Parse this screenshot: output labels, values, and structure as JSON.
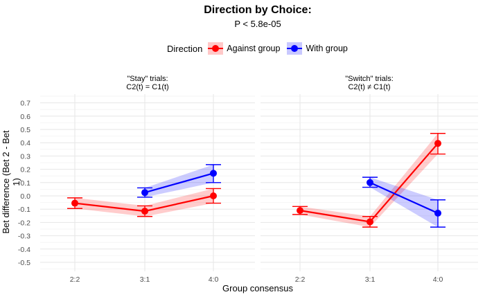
{
  "chart_data": {
    "type": "line",
    "title": "Direction by Choice:",
    "subtitle": "P < 5.8e-05",
    "xlabel": "Group consensus",
    "ylabel": "Bet difference (Bet 2 - Bet 1)",
    "ylim": [
      -0.55,
      0.75
    ],
    "yticks": [
      "0.7",
      "0.6",
      "0.5",
      "0.4",
      "0.3",
      "0.2",
      "0.1",
      "0.0",
      "-0.1",
      "-0.2",
      "-0.3",
      "-0.4",
      "-0.5"
    ],
    "ytick_values": [
      0.7,
      0.6,
      0.5,
      0.4,
      0.3,
      0.2,
      0.1,
      0.0,
      -0.1,
      -0.2,
      -0.3,
      -0.4,
      -0.5
    ],
    "categories": [
      "2:2",
      "3:1",
      "4:0"
    ],
    "grid": true,
    "legend": {
      "title": "Direction",
      "position": "top",
      "entries": [
        {
          "label": "Against group",
          "color": "#ff0000",
          "ribbon": "#ffc8c8"
        },
        {
          "label": "With group",
          "color": "#0000ff",
          "ribbon": "#c8c8ff"
        }
      ]
    },
    "panels": [
      {
        "title_line1": "\"Stay\" trials:",
        "title_line2": "C2(t) = C1(t)",
        "series": [
          {
            "name": "Against group",
            "x": [
              "2:2",
              "3:1",
              "4:0"
            ],
            "y": [
              -0.055,
              -0.115,
              0.0
            ],
            "lower": [
              -0.095,
              -0.155,
              -0.055
            ],
            "upper": [
              -0.015,
              -0.075,
              0.055
            ]
          },
          {
            "name": "With group",
            "x": [
              "3:1",
              "4:0"
            ],
            "y": [
              0.025,
              0.17
            ],
            "lower": [
              -0.01,
              0.1
            ],
            "upper": [
              0.06,
              0.235
            ]
          }
        ]
      },
      {
        "title_line1": "\"Switch\" trials:",
        "title_line2": "C2(t) ≠ C1(t)",
        "series": [
          {
            "name": "Against group",
            "x": [
              "2:2",
              "3:1",
              "4:0"
            ],
            "y": [
              -0.11,
              -0.195,
              0.395
            ],
            "lower": [
              -0.14,
              -0.235,
              0.315
            ],
            "upper": [
              -0.08,
              -0.155,
              0.47
            ]
          },
          {
            "name": "With group",
            "x": [
              "3:1",
              "4:0"
            ],
            "y": [
              0.1,
              -0.13
            ],
            "lower": [
              0.065,
              -0.235
            ],
            "upper": [
              0.14,
              -0.03
            ]
          }
        ]
      }
    ]
  }
}
